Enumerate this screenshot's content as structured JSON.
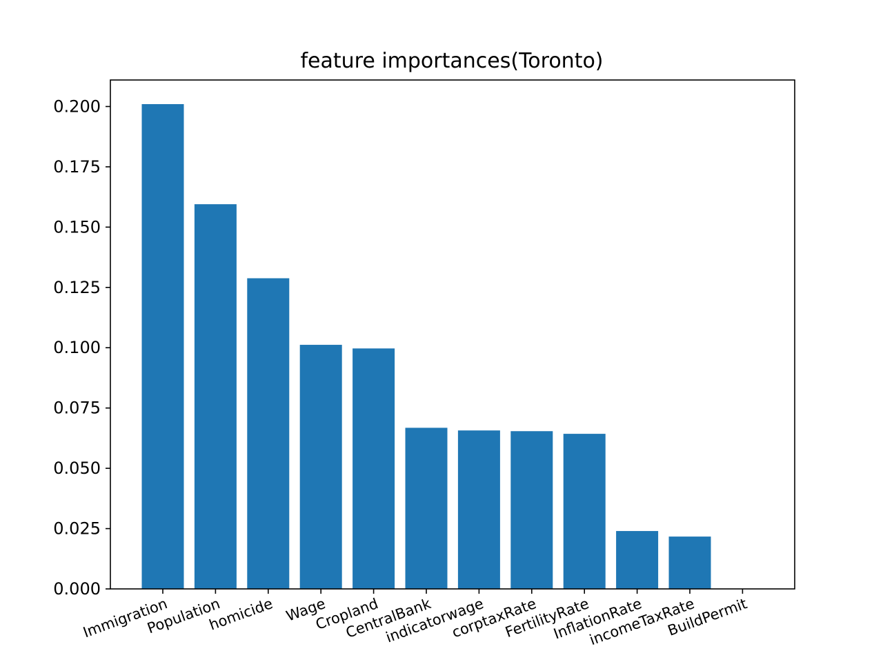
{
  "chart_data": {
    "type": "bar",
    "title": "feature importances(Toronto)",
    "xlabel": "",
    "ylabel": "",
    "categories": [
      "Immigration",
      "Population",
      "homicide",
      "Wage",
      "Cropland",
      "CentralBank",
      "indicatorwage",
      "corptaxRate",
      "FertilityRate",
      "InflationRate",
      "incomeTaxRate",
      "BuildPermit"
    ],
    "values": [
      0.201,
      0.1595,
      0.1288,
      0.1012,
      0.0997,
      0.0668,
      0.0657,
      0.0654,
      0.0643,
      0.024,
      0.0217,
      0.0
    ],
    "yticks": [
      "0.000",
      "0.025",
      "0.050",
      "0.075",
      "0.100",
      "0.125",
      "0.150",
      "0.175",
      "0.200"
    ],
    "ylim": [
      0,
      0.211
    ],
    "grid": false,
    "bar_color": "#1f77b4"
  }
}
